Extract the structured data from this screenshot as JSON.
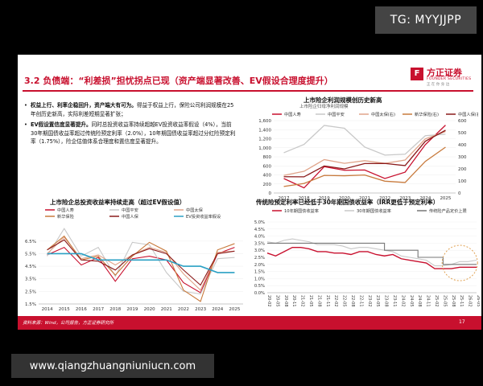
{
  "overlay": {
    "tg_label": "TG: MYYJJPP",
    "site_label": "www.qiangzhuangniuniucn.com"
  },
  "slide": {
    "title": "3.2 负债端：“利差损”担忧拐点已现（资产端显著改善、EV假设合理度提升）",
    "logo": {
      "mark": "F",
      "name": "方正证券",
      "english": "FOUNDER SECURITIES",
      "slogan": "正 在 你 身 边"
    },
    "bullets": [
      {
        "bold": "权益上行、利率企稳回升，资产端大有可为。",
        "text": "得益于权益上行，保险公司利润规模在25年创历史新高，实际利差短期显著扩张；"
      },
      {
        "bold": "EV假设置信度显著提升。",
        "text": "同时总投资收益率持续超越EV投资收益率假设（4%），当前30年期国债收益率超过传统险预定利率（2.0%），10年期国债收益率超过分红险预定利率（1.75%），险企估值体系合理度和置信度显著提升。"
      }
    ],
    "footer_source": "资料来源：Wind，公司报告，方正证券研究所",
    "page_number": "17"
  },
  "chart_data": [
    {
      "type": "line",
      "title": "上市险企利润规模创历史新高",
      "subtitle": "上市险企归母净利润规模",
      "x": [
        "2017",
        "2018",
        "2019",
        "2020",
        "2021",
        "2022",
        "2023",
        "2024",
        "2025"
      ],
      "ylim_left": [
        0,
        1600
      ],
      "yticks_left": [
        0,
        200,
        400,
        600,
        800,
        1000,
        1200,
        1400,
        1600
      ],
      "ylim_right": [
        0,
        600
      ],
      "yticks_right": [
        0,
        100,
        200,
        300,
        400,
        500,
        600
      ],
      "series": [
        {
          "name": "中国人寿",
          "axis": "left",
          "color": "#c8102e",
          "values": [
            320,
            113,
            583,
            502,
            509,
            321,
            461,
            1069,
            1500
          ]
        },
        {
          "name": "中国平安",
          "axis": "left",
          "color": "#c8c8c8",
          "values": [
            890,
            1074,
            1494,
            1431,
            1016,
            838,
            857,
            1266,
            1300
          ]
        },
        {
          "name": "中国太保(右)",
          "axis": "right",
          "color": "#e0a48a",
          "values": [
            146,
            180,
            277,
            246,
            268,
            246,
            273,
            449,
            510
          ]
        },
        {
          "name": "新华保险(右)",
          "axis": "right",
          "color": "#c87a3c",
          "values": [
            54,
            79,
            146,
            143,
            149,
            98,
            87,
            262,
            380
          ]
        },
        {
          "name": "中国人保(右)",
          "axis": "right",
          "color": "#8b1a1a",
          "values": [
            135,
            134,
            224,
            200,
            244,
            245,
            227,
            429,
            520
          ]
        }
      ]
    },
    {
      "type": "line",
      "title": "上市险企总投资收益率持续走高（超过EV假设值）",
      "x": [
        "2014",
        "2015",
        "2016",
        "2017",
        "2018",
        "2019",
        "2020",
        "2021",
        "2022",
        "2023",
        "2024",
        "2025"
      ],
      "ylim": [
        1.5,
        7.0
      ],
      "yticks": [
        1.5,
        2.5,
        3.5,
        4.5,
        5.5,
        6.5
      ],
      "series": [
        {
          "name": "中国人寿",
          "color": "#c8102e",
          "values": [
            5.4,
            6.0,
            4.6,
            5.2,
            3.3,
            5.1,
            5.3,
            5.0,
            3.2,
            2.4,
            5.5,
            6.0
          ]
        },
        {
          "name": "中国平安",
          "color": "#c8c8c8",
          "values": [
            5.3,
            7.5,
            5.3,
            6.0,
            3.7,
            6.4,
            6.2,
            4.0,
            2.5,
            2.3,
            5.1,
            5.2
          ]
        },
        {
          "name": "中国太保",
          "color": "#e0a48a",
          "values": [
            5.5,
            6.8,
            5.1,
            5.4,
            4.6,
            5.4,
            6.0,
            5.6,
            3.9,
            2.6,
            5.6,
            5.7
          ]
        },
        {
          "name": "新华保险",
          "color": "#c87a3c",
          "values": [
            5.8,
            6.9,
            5.0,
            5.3,
            3.8,
            5.3,
            6.4,
            5.7,
            2.6,
            1.7,
            5.8,
            6.3
          ]
        },
        {
          "name": "中国人保",
          "color": "#8b1a1a",
          "values": [
            5.8,
            6.6,
            5.0,
            4.9,
            4.2,
            5.4,
            5.9,
            5.5,
            4.2,
            3.0,
            5.5,
            5.7
          ]
        },
        {
          "name": "EV投资收益率假设",
          "color": "#2aa0c4",
          "values": [
            5.5,
            5.5,
            5.5,
            5.0,
            5.0,
            5.0,
            5.0,
            5.0,
            4.5,
            4.5,
            4.0,
            4.0
          ]
        }
      ]
    },
    {
      "type": "line",
      "title": "传统险预定利率已经低于30年期国债收益率（IRR更低于预定利率）",
      "x_ticks": [
        "20-02",
        "20-05",
        "20-08",
        "20-11",
        "21-02",
        "21-05",
        "21-08",
        "21-11",
        "22-02",
        "22-05",
        "22-08",
        "22-11",
        "23-02",
        "23-05",
        "23-08",
        "23-11",
        "24-02",
        "24-05",
        "24-08",
        "24-11",
        "25-02",
        "25-05",
        "25-08",
        "25-11",
        "26-02",
        "26-05"
      ],
      "ylim": [
        0.0,
        5.0
      ],
      "yticks": [
        0.0,
        0.5,
        1.0,
        1.5,
        2.0,
        2.5,
        3.0,
        3.5,
        4.0,
        4.5,
        5.0
      ],
      "series": [
        {
          "name": "10年期国债收益率",
          "color": "#c8102e",
          "values": [
            2.8,
            2.6,
            2.9,
            3.2,
            3.2,
            3.1,
            2.9,
            2.9,
            2.8,
            2.8,
            2.7,
            2.9,
            2.9,
            2.7,
            2.6,
            2.7,
            2.4,
            2.3,
            2.2,
            2.1,
            1.7,
            1.7,
            1.7,
            1.8,
            1.8,
            1.8
          ]
        },
        {
          "name": "30年期国债收益率",
          "color": "#c8c8c8",
          "values": [
            3.6,
            3.5,
            3.7,
            3.8,
            3.7,
            3.6,
            3.4,
            3.4,
            3.4,
            3.3,
            3.1,
            3.2,
            3.2,
            3.1,
            3.0,
            2.9,
            2.6,
            2.5,
            2.4,
            2.3,
            1.9,
            1.9,
            2.0,
            2.2,
            2.2,
            2.3
          ]
        },
        {
          "name": "传统险产品定价上限",
          "color": "#777777",
          "values": [
            3.5,
            3.5,
            3.5,
            3.5,
            3.5,
            3.5,
            3.5,
            3.5,
            3.5,
            3.5,
            3.5,
            3.5,
            3.5,
            3.5,
            3.0,
            3.0,
            3.0,
            3.0,
            2.5,
            2.5,
            2.5,
            2.0,
            2.0,
            2.0,
            2.0,
            2.0
          ]
        }
      ]
    }
  ]
}
